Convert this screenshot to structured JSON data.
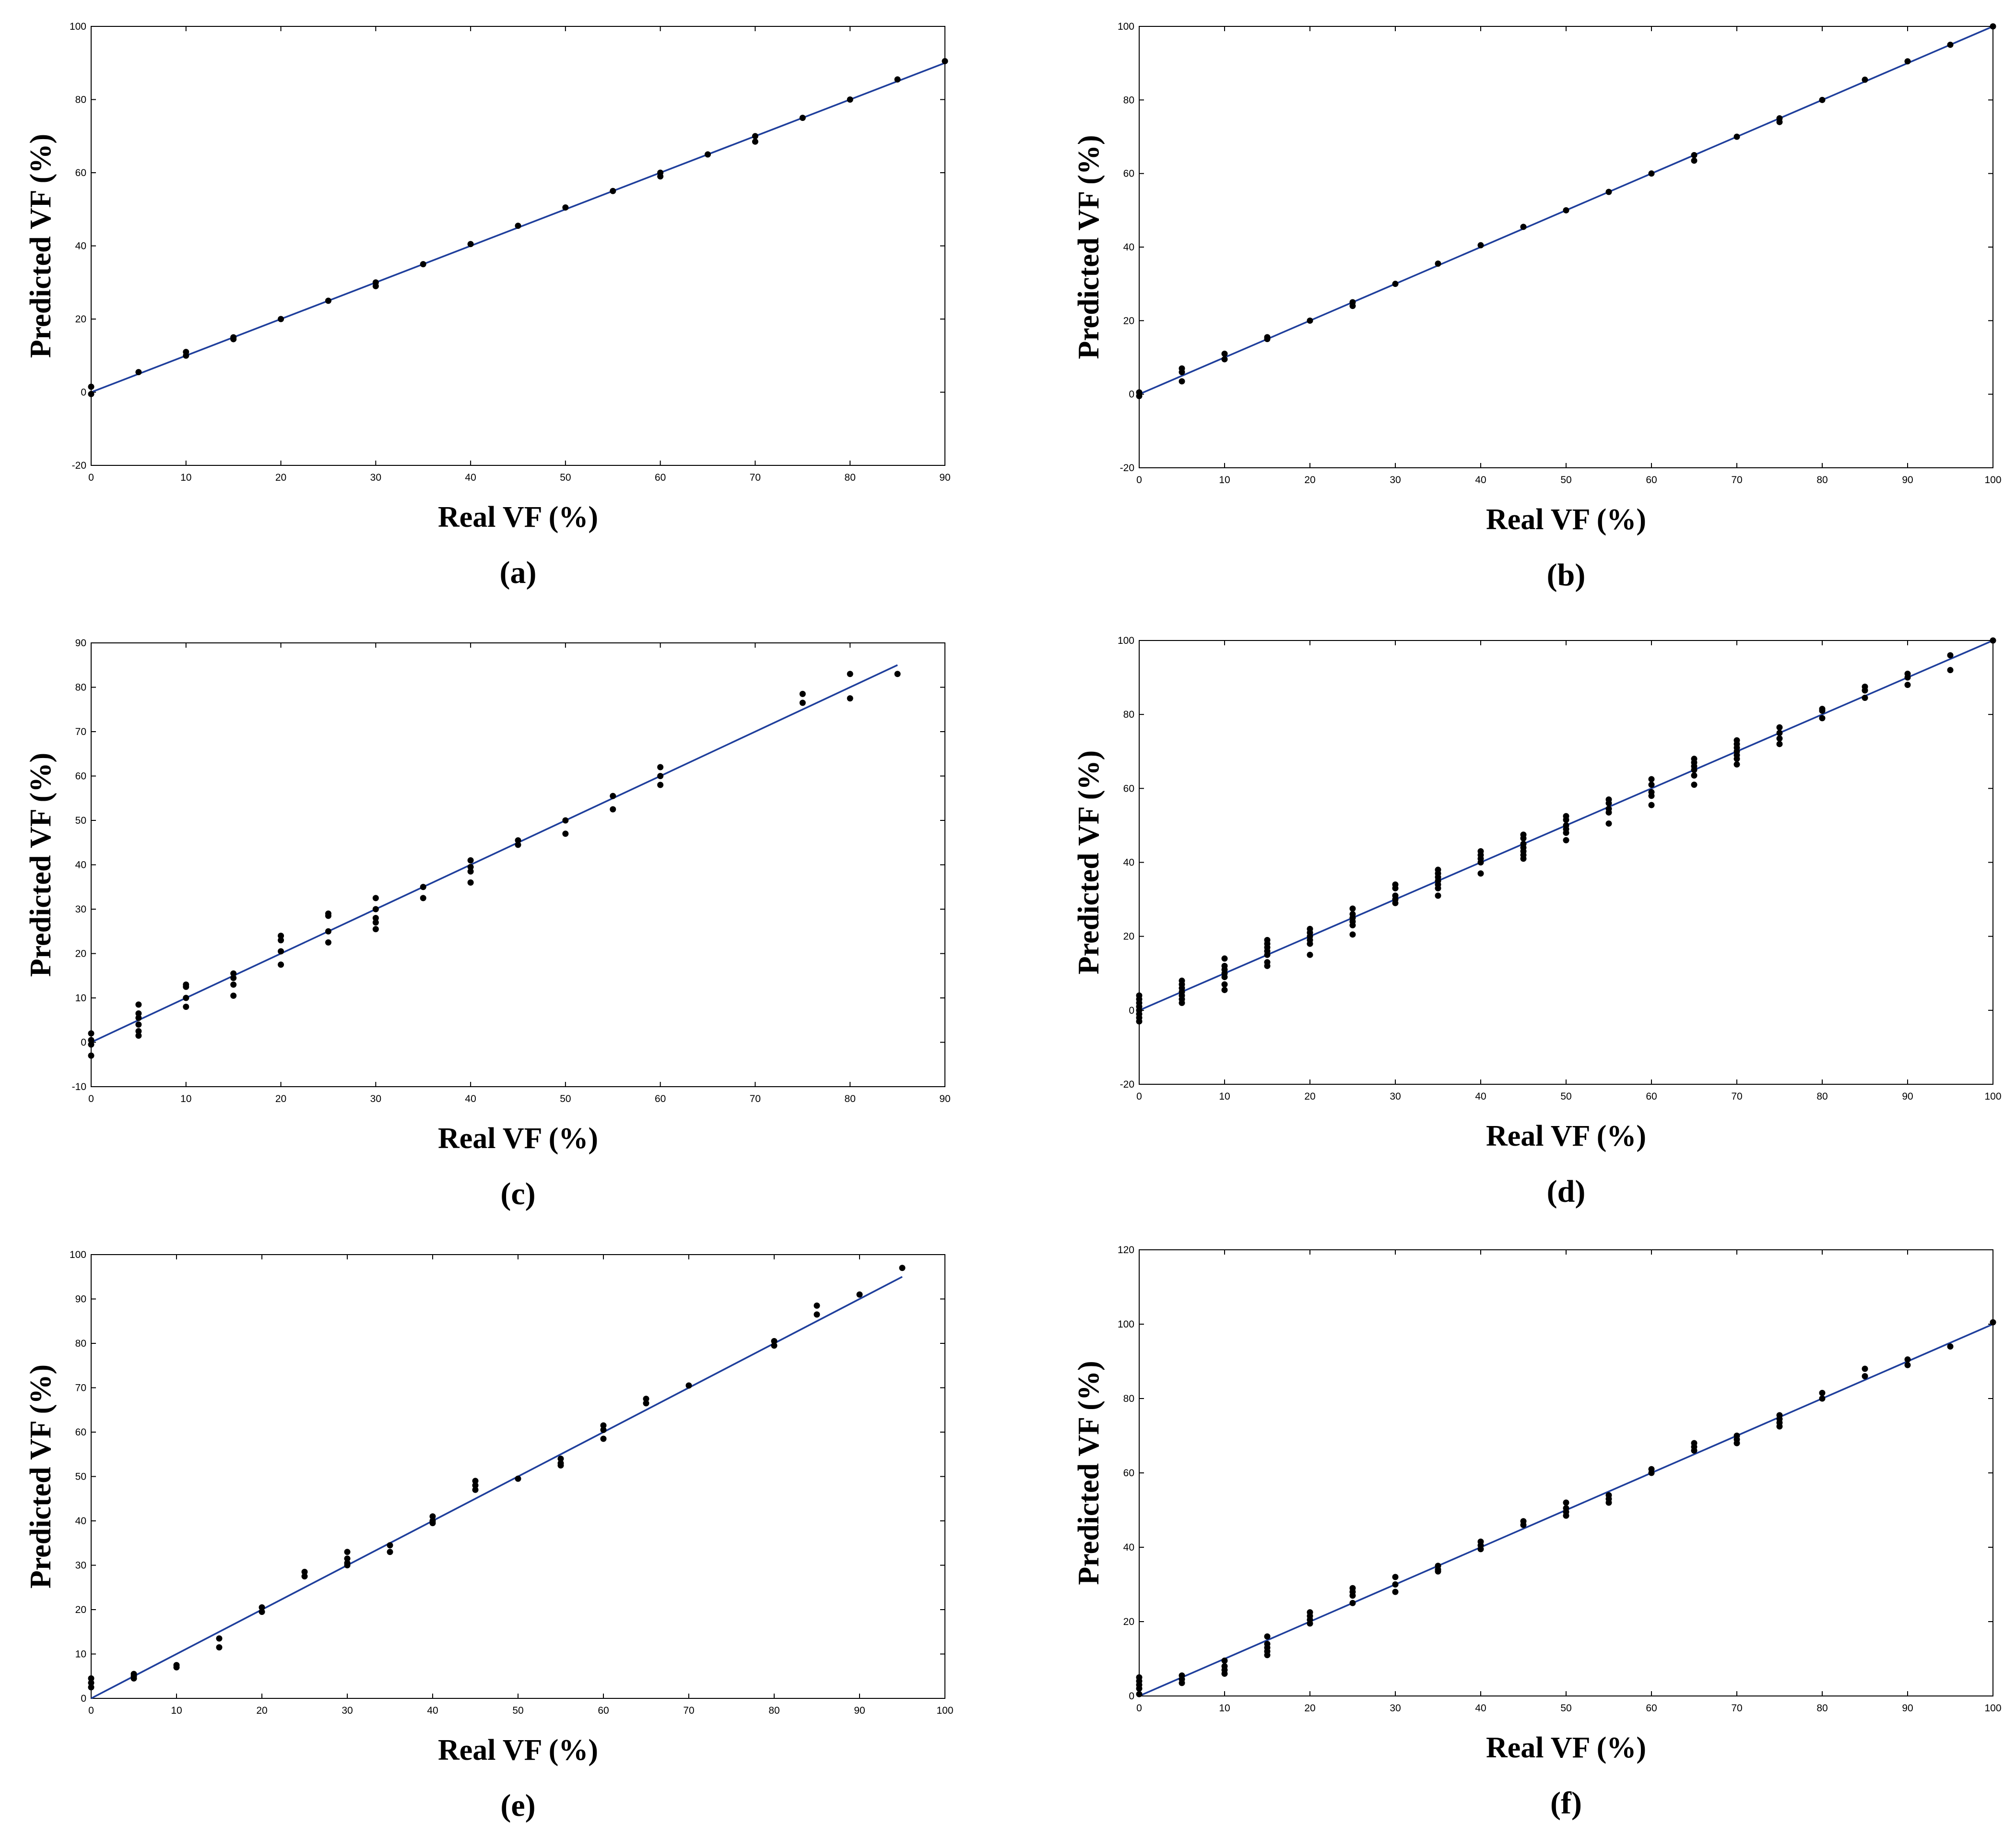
{
  "colors": {
    "fit_line": "#1f3f9c",
    "points": "#000000",
    "axes": "#000000",
    "background": "#ffffff"
  },
  "chart_data": [
    {
      "type": "scatter",
      "panel_label": "(a)",
      "xlabel": "Real VF (%)",
      "ylabel": "Predicted VF (%)",
      "xlim": [
        0,
        90
      ],
      "ylim": [
        -20,
        100
      ],
      "xticks": [
        0,
        10,
        20,
        30,
        40,
        50,
        60,
        70,
        80,
        90
      ],
      "yticks": [
        -20,
        0,
        20,
        40,
        60,
        80,
        100
      ],
      "fit_line": {
        "x": [
          0,
          90
        ],
        "y": [
          0,
          90
        ]
      },
      "points": [
        [
          0,
          1.5
        ],
        [
          0,
          -0.5
        ],
        [
          5,
          5.5
        ],
        [
          10,
          10
        ],
        [
          10,
          11
        ],
        [
          15,
          15
        ],
        [
          15,
          14.5
        ],
        [
          20,
          20
        ],
        [
          25,
          25
        ],
        [
          30,
          30
        ],
        [
          30,
          29
        ],
        [
          35,
          35
        ],
        [
          40,
          40.5
        ],
        [
          45,
          45.5
        ],
        [
          50,
          50.5
        ],
        [
          55,
          55
        ],
        [
          60,
          60
        ],
        [
          60,
          59
        ],
        [
          65,
          65
        ],
        [
          70,
          70
        ],
        [
          70,
          68.5
        ],
        [
          75,
          75
        ],
        [
          80,
          80
        ],
        [
          85,
          85.5
        ],
        [
          90,
          90.5
        ]
      ]
    },
    {
      "type": "scatter",
      "panel_label": "(b)",
      "xlabel": "Real VF (%)",
      "ylabel": "Predicted VF (%)",
      "xlim": [
        0,
        100
      ],
      "ylim": [
        -20,
        100
      ],
      "xticks": [
        0,
        10,
        20,
        30,
        40,
        50,
        60,
        70,
        80,
        90,
        100
      ],
      "yticks": [
        -20,
        0,
        20,
        40,
        60,
        80,
        100
      ],
      "fit_line": {
        "x": [
          0,
          100
        ],
        "y": [
          0,
          100
        ]
      },
      "points": [
        [
          0,
          0.5
        ],
        [
          0,
          -0.5
        ],
        [
          5,
          7
        ],
        [
          5,
          6
        ],
        [
          5,
          3.5
        ],
        [
          10,
          11
        ],
        [
          10,
          9.5
        ],
        [
          15,
          15.5
        ],
        [
          15,
          15
        ],
        [
          20,
          20
        ],
        [
          25,
          25
        ],
        [
          25,
          24
        ],
        [
          30,
          30
        ],
        [
          35,
          35.5
        ],
        [
          40,
          40.5
        ],
        [
          45,
          45.5
        ],
        [
          50,
          50
        ],
        [
          55,
          55
        ],
        [
          60,
          60
        ],
        [
          65,
          65
        ],
        [
          65,
          63.5
        ],
        [
          70,
          70
        ],
        [
          75,
          75
        ],
        [
          75,
          74
        ],
        [
          80,
          80
        ],
        [
          85,
          85.5
        ],
        [
          90,
          90.5
        ],
        [
          95,
          95
        ],
        [
          100,
          100
        ]
      ]
    },
    {
      "type": "scatter",
      "panel_label": "(c)",
      "xlabel": "Real VF (%)",
      "ylabel": "Predicted VF (%)",
      "xlim": [
        0,
        90
      ],
      "ylim": [
        -10,
        90
      ],
      "xticks": [
        0,
        10,
        20,
        30,
        40,
        50,
        60,
        70,
        80,
        90
      ],
      "yticks": [
        -10,
        0,
        10,
        20,
        30,
        40,
        50,
        60,
        70,
        80,
        90
      ],
      "fit_line": {
        "x": [
          0,
          85
        ],
        "y": [
          0,
          85
        ]
      },
      "points": [
        [
          0,
          2
        ],
        [
          0,
          0.5
        ],
        [
          0,
          -0.5
        ],
        [
          0,
          -3
        ],
        [
          5,
          8.5
        ],
        [
          5,
          6.5
        ],
        [
          5,
          5.5
        ],
        [
          5,
          4
        ],
        [
          5,
          2.5
        ],
        [
          5,
          1.5
        ],
        [
          10,
          13
        ],
        [
          10,
          12.5
        ],
        [
          10,
          10
        ],
        [
          10,
          8
        ],
        [
          15,
          15.5
        ],
        [
          15,
          14.5
        ],
        [
          15,
          13
        ],
        [
          15,
          10.5
        ],
        [
          20,
          24
        ],
        [
          20,
          23
        ],
        [
          20,
          20.5
        ],
        [
          20,
          17.5
        ],
        [
          25,
          29
        ],
        [
          25,
          28.5
        ],
        [
          25,
          25
        ],
        [
          25,
          22.5
        ],
        [
          30,
          32.5
        ],
        [
          30,
          30
        ],
        [
          30,
          28
        ],
        [
          30,
          27
        ],
        [
          30,
          25.5
        ],
        [
          35,
          35
        ],
        [
          35,
          32.5
        ],
        [
          40,
          41
        ],
        [
          40,
          39.5
        ],
        [
          40,
          38.5
        ],
        [
          40,
          36
        ],
        [
          45,
          45.5
        ],
        [
          45,
          44.5
        ],
        [
          50,
          50
        ],
        [
          50,
          47
        ],
        [
          55,
          55.5
        ],
        [
          55,
          52.5
        ],
        [
          60,
          62
        ],
        [
          60,
          60
        ],
        [
          60,
          58
        ],
        [
          75,
          78.5
        ],
        [
          75,
          76.5
        ],
        [
          80,
          83
        ],
        [
          80,
          77.5
        ],
        [
          85,
          83
        ]
      ]
    },
    {
      "type": "scatter",
      "panel_label": "(d)",
      "xlabel": "Real VF (%)",
      "ylabel": "Predicted VF (%)",
      "xlim": [
        0,
        100
      ],
      "ylim": [
        -20,
        100
      ],
      "xticks": [
        0,
        10,
        20,
        30,
        40,
        50,
        60,
        70,
        80,
        90,
        100
      ],
      "yticks": [
        -20,
        0,
        20,
        40,
        60,
        80,
        100
      ],
      "fit_line": {
        "x": [
          0,
          100
        ],
        "y": [
          0,
          100
        ]
      },
      "points": [
        [
          0,
          4
        ],
        [
          0,
          3
        ],
        [
          0,
          2
        ],
        [
          0,
          1
        ],
        [
          0,
          0
        ],
        [
          0,
          -1
        ],
        [
          0,
          -2
        ],
        [
          0,
          -3
        ],
        [
          5,
          8
        ],
        [
          5,
          7
        ],
        [
          5,
          6
        ],
        [
          5,
          5
        ],
        [
          5,
          4
        ],
        [
          5,
          3
        ],
        [
          5,
          2
        ],
        [
          10,
          14
        ],
        [
          10,
          12
        ],
        [
          10,
          11
        ],
        [
          10,
          10
        ],
        [
          10,
          9
        ],
        [
          10,
          7
        ],
        [
          10,
          5.5
        ],
        [
          15,
          19
        ],
        [
          15,
          18
        ],
        [
          15,
          17
        ],
        [
          15,
          16
        ],
        [
          15,
          15
        ],
        [
          15,
          13
        ],
        [
          15,
          12
        ],
        [
          20,
          22
        ],
        [
          20,
          21
        ],
        [
          20,
          20
        ],
        [
          20,
          19
        ],
        [
          20,
          18
        ],
        [
          20,
          15
        ],
        [
          25,
          27.5
        ],
        [
          25,
          26
        ],
        [
          25,
          25
        ],
        [
          25,
          24
        ],
        [
          25,
          23
        ],
        [
          25,
          20.5
        ],
        [
          30,
          34
        ],
        [
          30,
          33
        ],
        [
          30,
          31
        ],
        [
          30,
          30
        ],
        [
          30,
          29
        ],
        [
          35,
          38
        ],
        [
          35,
          37
        ],
        [
          35,
          36
        ],
        [
          35,
          35
        ],
        [
          35,
          34
        ],
        [
          35,
          33
        ],
        [
          35,
          31
        ],
        [
          40,
          43
        ],
        [
          40,
          42
        ],
        [
          40,
          41
        ],
        [
          40,
          40
        ],
        [
          40,
          37
        ],
        [
          45,
          47.5
        ],
        [
          45,
          46.5
        ],
        [
          45,
          45
        ],
        [
          45,
          44
        ],
        [
          45,
          43
        ],
        [
          45,
          42
        ],
        [
          45,
          41
        ],
        [
          50,
          52.5
        ],
        [
          50,
          51.5
        ],
        [
          50,
          50
        ],
        [
          50,
          49
        ],
        [
          50,
          48
        ],
        [
          50,
          46
        ],
        [
          55,
          57
        ],
        [
          55,
          56
        ],
        [
          55,
          54.5
        ],
        [
          55,
          53.5
        ],
        [
          55,
          50.5
        ],
        [
          60,
          62.5
        ],
        [
          60,
          61
        ],
        [
          60,
          59
        ],
        [
          60,
          58
        ],
        [
          60,
          55.5
        ],
        [
          65,
          68
        ],
        [
          65,
          67
        ],
        [
          65,
          66
        ],
        [
          65,
          65
        ],
        [
          65,
          63.5
        ],
        [
          65,
          61
        ],
        [
          70,
          73
        ],
        [
          70,
          72
        ],
        [
          70,
          71
        ],
        [
          70,
          70
        ],
        [
          70,
          69
        ],
        [
          70,
          68
        ],
        [
          70,
          66.5
        ],
        [
          75,
          76.5
        ],
        [
          75,
          75
        ],
        [
          75,
          73.5
        ],
        [
          75,
          72
        ],
        [
          80,
          81.5
        ],
        [
          80,
          81
        ],
        [
          80,
          79
        ],
        [
          85,
          87.5
        ],
        [
          85,
          86.5
        ],
        [
          85,
          84.5
        ],
        [
          90,
          91
        ],
        [
          90,
          90
        ],
        [
          90,
          88
        ],
        [
          95,
          96
        ],
        [
          95,
          92
        ],
        [
          100,
          100
        ]
      ]
    },
    {
      "type": "scatter",
      "panel_label": "(e)",
      "xlabel": "Real VF (%)",
      "ylabel": "Predicted VF (%)",
      "xlim": [
        0,
        100
      ],
      "ylim": [
        0,
        100
      ],
      "xticks": [
        0,
        10,
        20,
        30,
        40,
        50,
        60,
        70,
        80,
        90,
        100
      ],
      "yticks": [
        0,
        10,
        20,
        30,
        40,
        50,
        60,
        70,
        80,
        90,
        100
      ],
      "fit_line": {
        "x": [
          0,
          95
        ],
        "y": [
          0,
          95
        ]
      },
      "points": [
        [
          0,
          4.5
        ],
        [
          0,
          3.5
        ],
        [
          0,
          2.5
        ],
        [
          5,
          5.5
        ],
        [
          5,
          5
        ],
        [
          5,
          4.5
        ],
        [
          10,
          7.5
        ],
        [
          10,
          7
        ],
        [
          15,
          13.5
        ],
        [
          15,
          11.5
        ],
        [
          20,
          20.5
        ],
        [
          20,
          19.5
        ],
        [
          25,
          28.5
        ],
        [
          25,
          27.5
        ],
        [
          30,
          33
        ],
        [
          30,
          31.5
        ],
        [
          30,
          30.5
        ],
        [
          30,
          30
        ],
        [
          35,
          34.5
        ],
        [
          35,
          33
        ],
        [
          40,
          41
        ],
        [
          40,
          40
        ],
        [
          40,
          39.5
        ],
        [
          45,
          49
        ],
        [
          45,
          48
        ],
        [
          45,
          47
        ],
        [
          50,
          49.5
        ],
        [
          55,
          54
        ],
        [
          55,
          53
        ],
        [
          55,
          52.5
        ],
        [
          60,
          61.5
        ],
        [
          60,
          60.5
        ],
        [
          60,
          58.5
        ],
        [
          65,
          67.5
        ],
        [
          65,
          66.5
        ],
        [
          70,
          70.5
        ],
        [
          80,
          80.5
        ],
        [
          80,
          79.5
        ],
        [
          85,
          88.5
        ],
        [
          85,
          86.5
        ],
        [
          90,
          91
        ],
        [
          95,
          97
        ]
      ]
    },
    {
      "type": "scatter",
      "panel_label": "(f)",
      "xlabel": "Real VF (%)",
      "ylabel": "Predicted VF (%)",
      "xlim": [
        0,
        100
      ],
      "ylim": [
        0,
        120
      ],
      "xticks": [
        0,
        10,
        20,
        30,
        40,
        50,
        60,
        70,
        80,
        90,
        100
      ],
      "yticks": [
        0,
        20,
        40,
        60,
        80,
        100,
        120
      ],
      "fit_line": {
        "x": [
          0,
          100
        ],
        "y": [
          0,
          100
        ]
      },
      "points": [
        [
          0,
          5
        ],
        [
          0,
          4
        ],
        [
          0,
          3
        ],
        [
          0,
          2
        ],
        [
          0,
          0.5
        ],
        [
          5,
          5.5
        ],
        [
          5,
          4.5
        ],
        [
          5,
          3.5
        ],
        [
          10,
          9.5
        ],
        [
          10,
          8
        ],
        [
          10,
          7
        ],
        [
          10,
          6
        ],
        [
          15,
          16
        ],
        [
          15,
          14
        ],
        [
          15,
          13
        ],
        [
          15,
          12
        ],
        [
          15,
          11
        ],
        [
          20,
          22.5
        ],
        [
          20,
          21.5
        ],
        [
          20,
          20.5
        ],
        [
          20,
          19.5
        ],
        [
          25,
          29
        ],
        [
          25,
          28
        ],
        [
          25,
          27
        ],
        [
          25,
          25
        ],
        [
          30,
          32
        ],
        [
          30,
          30
        ],
        [
          30,
          28
        ],
        [
          35,
          35
        ],
        [
          35,
          34
        ],
        [
          35,
          33.5
        ],
        [
          40,
          41.5
        ],
        [
          40,
          40.5
        ],
        [
          40,
          39.5
        ],
        [
          45,
          47
        ],
        [
          45,
          46
        ],
        [
          50,
          52
        ],
        [
          50,
          50.5
        ],
        [
          50,
          49.5
        ],
        [
          50,
          48.5
        ],
        [
          55,
          54
        ],
        [
          55,
          53
        ],
        [
          55,
          52
        ],
        [
          60,
          61
        ],
        [
          60,
          60
        ],
        [
          65,
          68
        ],
        [
          65,
          67
        ],
        [
          65,
          66
        ],
        [
          70,
          70
        ],
        [
          70,
          69
        ],
        [
          70,
          68
        ],
        [
          75,
          75.5
        ],
        [
          75,
          74.5
        ],
        [
          75,
          73.5
        ],
        [
          75,
          72.5
        ],
        [
          80,
          81.5
        ],
        [
          80,
          80
        ],
        [
          85,
          88
        ],
        [
          85,
          86
        ],
        [
          90,
          90.5
        ],
        [
          90,
          89
        ],
        [
          95,
          94
        ],
        [
          100,
          100.5
        ]
      ]
    }
  ]
}
